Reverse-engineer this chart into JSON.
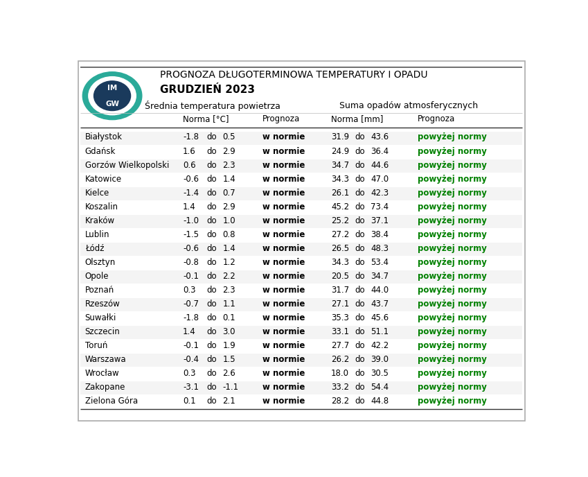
{
  "title_line1": "PROGNOZA DŁUGOTERMINOWA TEMPERATURY I OPADU",
  "title_line2": "GRUDZIEŃ 2023",
  "header_temp": "Średnia temperatura powietrza",
  "header_opady": "Suma opadów atmosferycznych",
  "subheader_norma_temp": "Norma [°C]",
  "subheader_prognoza": "Prognoza",
  "subheader_norma_opady": "Norma [mm]",
  "cities": [
    "Białystok",
    "Gdańsk",
    "Gorzów Wielkopolski",
    "Katowice",
    "Kielce",
    "Koszalin",
    "Kraków",
    "Lublin",
    "Łódź",
    "Olsztyn",
    "Opole",
    "Poznań",
    "Rzeszów",
    "Suwałki",
    "Szczecin",
    "Toruń",
    "Warszawa",
    "Wrocław",
    "Zakopane",
    "Zielona Góra"
  ],
  "temp_min": [
    -1.8,
    1.6,
    0.6,
    -0.6,
    -1.4,
    1.4,
    -1.0,
    -1.5,
    -0.6,
    -0.8,
    -0.1,
    0.3,
    -0.7,
    -1.8,
    1.4,
    -0.1,
    -0.4,
    0.3,
    -3.1,
    0.1
  ],
  "temp_max": [
    0.5,
    2.9,
    2.3,
    1.4,
    0.7,
    2.9,
    1.0,
    0.8,
    1.4,
    1.2,
    2.2,
    2.3,
    1.1,
    0.1,
    3.0,
    1.9,
    1.5,
    2.6,
    -1.1,
    2.1
  ],
  "temp_prognoza": [
    "w normie",
    "w normie",
    "w normie",
    "w normie",
    "w normie",
    "w normie",
    "w normie",
    "w normie",
    "w normie",
    "w normie",
    "w normie",
    "w normie",
    "w normie",
    "w normie",
    "w normie",
    "w normie",
    "w normie",
    "w normie",
    "w normie",
    "w normie"
  ],
  "opady_min": [
    31.9,
    24.9,
    34.7,
    34.3,
    26.1,
    45.2,
    25.2,
    27.2,
    26.5,
    34.3,
    20.5,
    31.7,
    27.1,
    35.3,
    33.1,
    27.7,
    26.2,
    18.0,
    33.2,
    28.2
  ],
  "opady_max": [
    43.6,
    36.4,
    44.6,
    47.0,
    42.3,
    73.4,
    37.1,
    38.4,
    48.3,
    53.4,
    34.7,
    44.0,
    43.7,
    45.6,
    51.1,
    42.2,
    39.0,
    30.5,
    54.4,
    44.8
  ],
  "opady_prognoza": [
    "powyżej normy",
    "powyżej normy",
    "powyżej normy",
    "powyżej normy",
    "powyżej normy",
    "powyżej normy",
    "powyżej normy",
    "powyżej normy",
    "powyżej normy",
    "powyżej normy",
    "powyżej normy",
    "powyżej normy",
    "powyżej normy",
    "powyżej normy",
    "powyżej normy",
    "powyżej normy",
    "powyżej normy",
    "powyżej normy",
    "powyżej normy",
    "powyżej normy"
  ],
  "temp_prognoza_color": "#000000",
  "opady_prognoza_color": "#008000",
  "background_color": "#ffffff",
  "fig_width": 8.49,
  "fig_height": 6.88
}
